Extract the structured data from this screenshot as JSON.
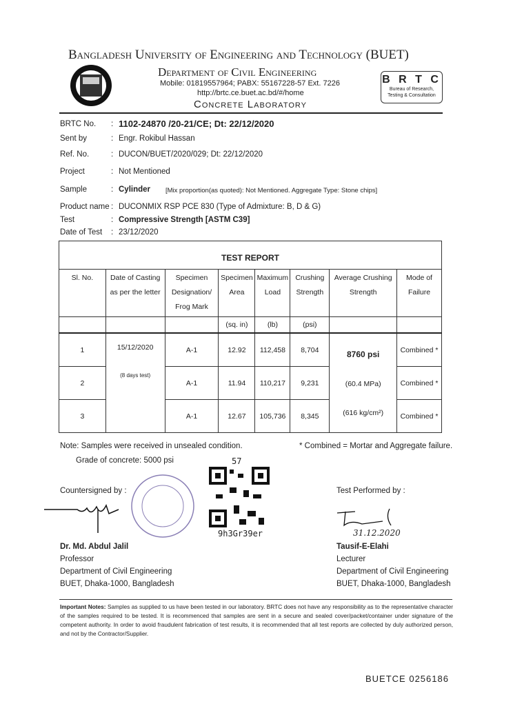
{
  "header": {
    "university": "Bangladesh University of Engineering and Technology (BUET)",
    "department": "Department of Civil Engineering",
    "contact": "Mobile: 01819557964; PABX: 55167228-57 Ext. 7226",
    "url": "http://brtc.ce.buet.ac.bd/#/home",
    "lab": "Concrete Laboratory",
    "brtc_logo": "B R T C",
    "brtc_sub1": "Bureau of Research,",
    "brtc_sub2": "Testing & Consultation"
  },
  "info": [
    {
      "label": "BRTC No.",
      "value": "1102-24870 /20-21/CE;  Dt: 22/12/2020"
    },
    {
      "label": "Sent by",
      "value": "Engr. Rokibul Hassan"
    },
    {
      "label": "Ref. No.",
      "value": "DUCON/BUET/2020/029;  Dt: 22/12/2020"
    },
    {
      "label": "Project",
      "value": "Not Mentioned"
    },
    {
      "label": "Sample",
      "value": "Cylinder",
      "extra": "[Mix proportion(as quoted): Not Mentioned.  Aggregate Type:  Stone chips]"
    },
    {
      "label": "Product name",
      "value": "DUCONMIX RSP PCE 830 (Type of Admixture: B, D & G)"
    },
    {
      "label": "Test",
      "value": "Compressive Strength [ASTM C39]"
    },
    {
      "label": "Date of Test",
      "value": "23/12/2020"
    }
  ],
  "report": {
    "title": "TEST REPORT",
    "headers": [
      "Sl. No.",
      "Date of Casting as per the letter",
      "Specimen Designation/ Frog Mark",
      "Specimen Area",
      "Maximum Load",
      "Crushing Strength",
      "Average Crushing Strength",
      "Mode of Failure"
    ],
    "units": [
      "(sq. in)",
      "(lb)",
      "(psi)"
    ],
    "casting_date": "15/12/2020",
    "casting_note": "(8 days test)",
    "rows": [
      {
        "sl": "1",
        "designation": "A-1",
        "area": "12.92",
        "load": "112,458",
        "strength": "8,704",
        "mode": "Combined *"
      },
      {
        "sl": "2",
        "designation": "A-1",
        "area": "11.94",
        "load": "110,217",
        "strength": "9,231",
        "mode": "Combined *"
      },
      {
        "sl": "3",
        "designation": "A-1",
        "area": "12.67",
        "load": "105,736",
        "strength": "8,345",
        "mode": "Combined *"
      }
    ],
    "avg_psi": "8760 psi",
    "avg_mpa": "(60.4 MPa)",
    "avg_kg": "(616 kg/cm²)"
  },
  "notes": {
    "note": "Note: Samples were received in unsealed condition.",
    "combined": "* Combined = Mortar and Aggregate failure.",
    "grade": "Grade of concrete: 5000 psi",
    "qr_num": "57",
    "qr_code": "9h3Gr39er"
  },
  "left_sig": {
    "label": "Countersigned by :",
    "name": "Dr. Md. Abdul Jalil",
    "title": "Professor",
    "dept": "Department of Civil Engineering",
    "addr": "BUET, Dhaka-1000, Bangladesh"
  },
  "right_sig": {
    "label": "Test Performed by :",
    "date": "31.12.2020",
    "name": "Tausif-E-Elahi",
    "title": "Lecturer",
    "dept": "Department of Civil Engineering",
    "addr": "BUET, Dhaka-1000, Bangladesh"
  },
  "important": {
    "title": "Important Notes:",
    "text": "Samples as supplied to us have been tested in our laboratory. BRTC does not have any responsibility as to the representative character of the samples required to be tested. It is recommenced that samples are sent in a secure and sealed cover/packet/container under signature of the competent authority. In order to avoid fraudulent fabrication of test results, it is recommended that all test reports are collected by duly authorized person, and not by the Contractor/Supplier."
  },
  "serial": "BUETCE 0256186"
}
